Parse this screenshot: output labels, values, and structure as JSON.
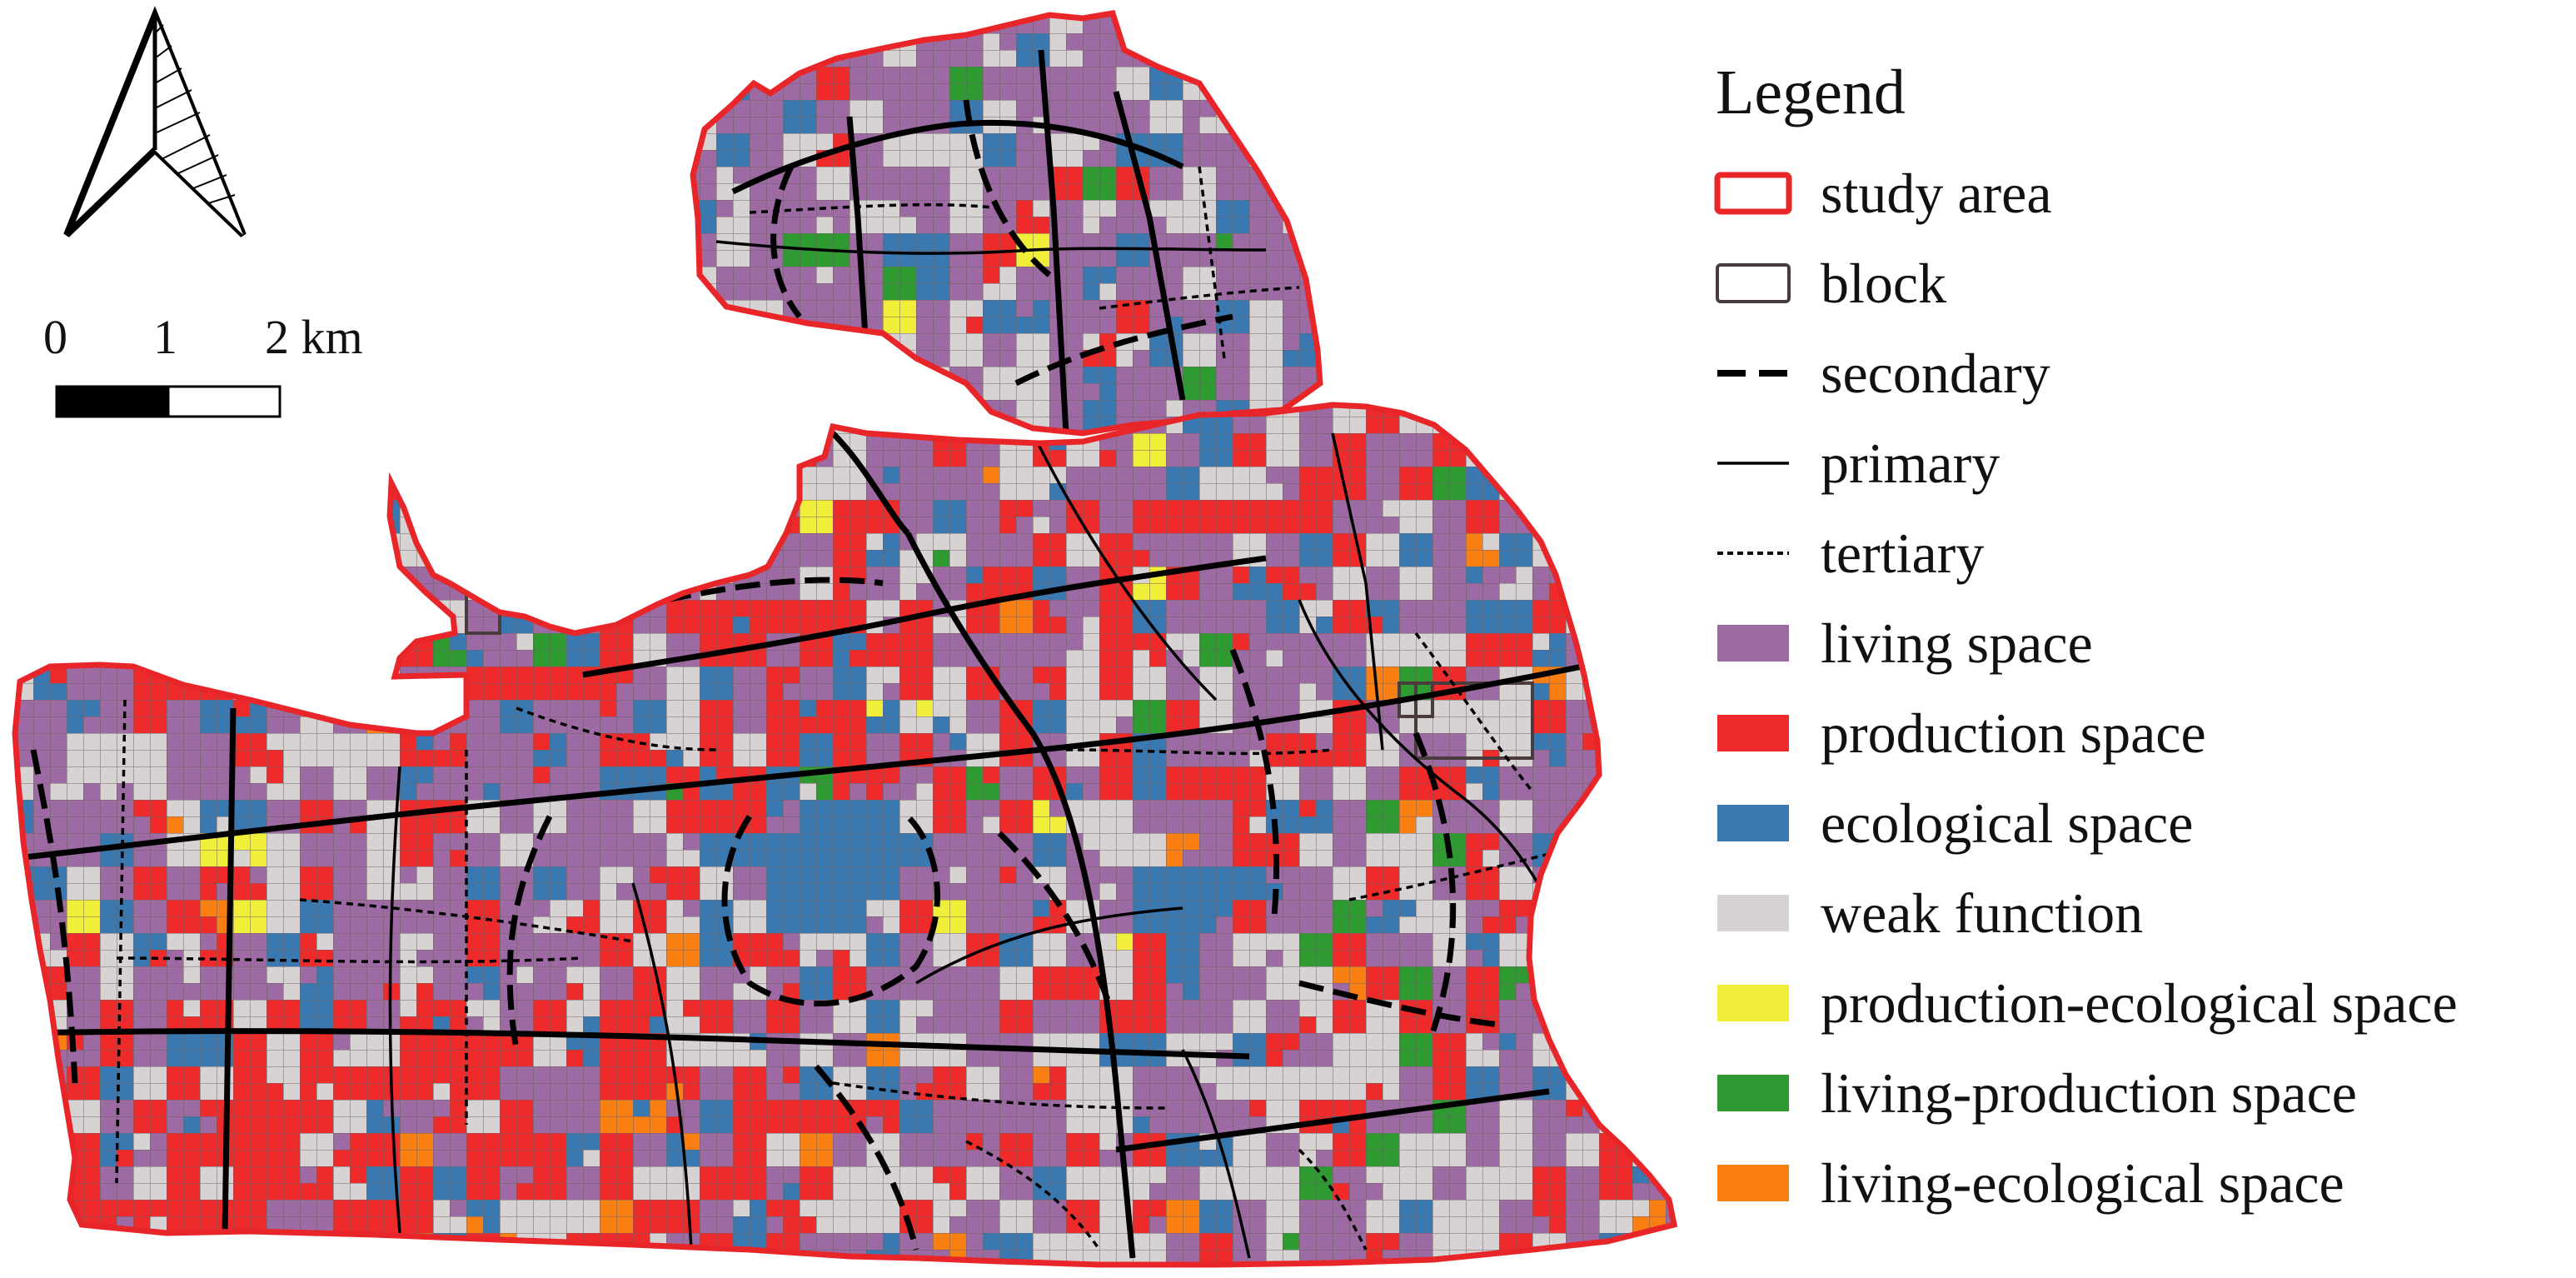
{
  "legend": {
    "title": "Legend",
    "items": [
      {
        "key": "study_area",
        "label": "study area",
        "symbol": "outline",
        "color": "#e8262a"
      },
      {
        "key": "block",
        "label": "block",
        "symbol": "outline",
        "color": "#4a3c3c"
      },
      {
        "key": "secondary",
        "label": "secondary",
        "symbol": "dash",
        "color": "#000000"
      },
      {
        "key": "primary",
        "label": "primary",
        "symbol": "line",
        "color": "#000000"
      },
      {
        "key": "tertiary",
        "label": "tertiary",
        "symbol": "dot",
        "color": "#000000"
      },
      {
        "key": "living",
        "label": "living space",
        "symbol": "fill",
        "color": "#9d6aa3"
      },
      {
        "key": "production",
        "label": "production space",
        "symbol": "fill",
        "color": "#ee2a2a"
      },
      {
        "key": "ecological",
        "label": "ecological space",
        "symbol": "fill",
        "color": "#3a78b2"
      },
      {
        "key": "weak",
        "label": "weak function",
        "symbol": "fill",
        "color": "#d8d3d3"
      },
      {
        "key": "prod_eco",
        "label": "production-ecological space",
        "symbol": "fill",
        "color": "#f1ee3a"
      },
      {
        "key": "liv_prod",
        "label": "living-production space",
        "symbol": "fill",
        "color": "#2f9a32"
      },
      {
        "key": "liv_eco",
        "label": "living-ecological space",
        "symbol": "fill",
        "color": "#fa7f12"
      }
    ]
  },
  "scale_bar": {
    "labels": [
      "0",
      "1",
      "2 km"
    ]
  },
  "north_arrow": {
    "icon": "north-arrow-icon"
  }
}
